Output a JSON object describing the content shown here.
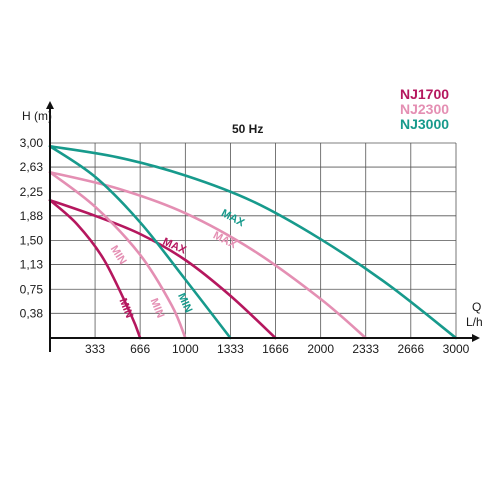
{
  "chart_data": {
    "type": "line",
    "title": "50 Hz",
    "ylabel": "H (m)",
    "xlabel_q": "Q",
    "xlabel_unit": "L/h",
    "x_ticks": [
      "333",
      "666",
      "1000",
      "1333",
      "1666",
      "2000",
      "2333",
      "2666",
      "3000"
    ],
    "y_ticks": [
      "3,00",
      "2,63",
      "2,25",
      "1,88",
      "1,50",
      "1,13",
      "0,75",
      "0,38"
    ],
    "xlim": [
      0,
      3000
    ],
    "ylim": [
      0,
      3.0
    ],
    "grid": true,
    "legend": [
      {
        "name": "NJ1700",
        "color": "#b5175e"
      },
      {
        "name": "NJ2300",
        "color": "#e48fb3"
      },
      {
        "name": "NJ3000",
        "color": "#179a8c"
      }
    ],
    "series": [
      {
        "name": "NJ1700",
        "setting": "MAX",
        "color": "#b5175e",
        "x": [
          0,
          333,
          666,
          1000,
          1333,
          1666
        ],
        "y": [
          2.12,
          1.88,
          1.6,
          1.2,
          0.65,
          0.0
        ]
      },
      {
        "name": "NJ1700",
        "setting": "MIN",
        "color": "#b5175e",
        "x": [
          0,
          200,
          400,
          600,
          666
        ],
        "y": [
          2.12,
          1.75,
          1.2,
          0.35,
          0.0
        ]
      },
      {
        "name": "NJ2300",
        "setting": "MAX",
        "color": "#e48fb3",
        "x": [
          0,
          500,
          1000,
          1500,
          2000,
          2333
        ],
        "y": [
          2.55,
          2.3,
          1.92,
          1.35,
          0.6,
          0.0
        ]
      },
      {
        "name": "NJ2300",
        "setting": "MIN",
        "color": "#e48fb3",
        "x": [
          0,
          333,
          666,
          900,
          1000
        ],
        "y": [
          2.55,
          2.02,
          1.28,
          0.5,
          0.0
        ]
      },
      {
        "name": "NJ3000",
        "setting": "MAX",
        "color": "#179a8c",
        "x": [
          0,
          500,
          1000,
          1500,
          2000,
          2500,
          3000
        ],
        "y": [
          2.95,
          2.78,
          2.5,
          2.1,
          1.52,
          0.82,
          0.0
        ]
      },
      {
        "name": "NJ3000",
        "setting": "MIN",
        "color": "#179a8c",
        "x": [
          0,
          333,
          666,
          1000,
          1333
        ],
        "y": [
          2.95,
          2.48,
          1.78,
          0.9,
          0.0
        ]
      }
    ],
    "curve_labels": [
      {
        "text": "MAX",
        "x": 1340,
        "y": 1.8,
        "rotate": 28,
        "color": "#179a8c"
      },
      {
        "text": "MAX",
        "x": 1280,
        "y": 1.46,
        "rotate": 27,
        "color": "#e48fb3"
      },
      {
        "text": "MAX",
        "x": 910,
        "y": 1.37,
        "rotate": 24,
        "color": "#b5175e"
      },
      {
        "text": "MIN",
        "x": 485,
        "y": 1.25,
        "rotate": 58,
        "color": "#e48fb3"
      },
      {
        "text": "MIN",
        "x": 540,
        "y": 0.44,
        "rotate": 68,
        "color": "#b5175e"
      },
      {
        "text": "MIN",
        "x": 770,
        "y": 0.44,
        "rotate": 68,
        "color": "#e48fb3"
      },
      {
        "text": "MIN",
        "x": 975,
        "y": 0.52,
        "rotate": 66,
        "color": "#179a8c"
      }
    ]
  }
}
